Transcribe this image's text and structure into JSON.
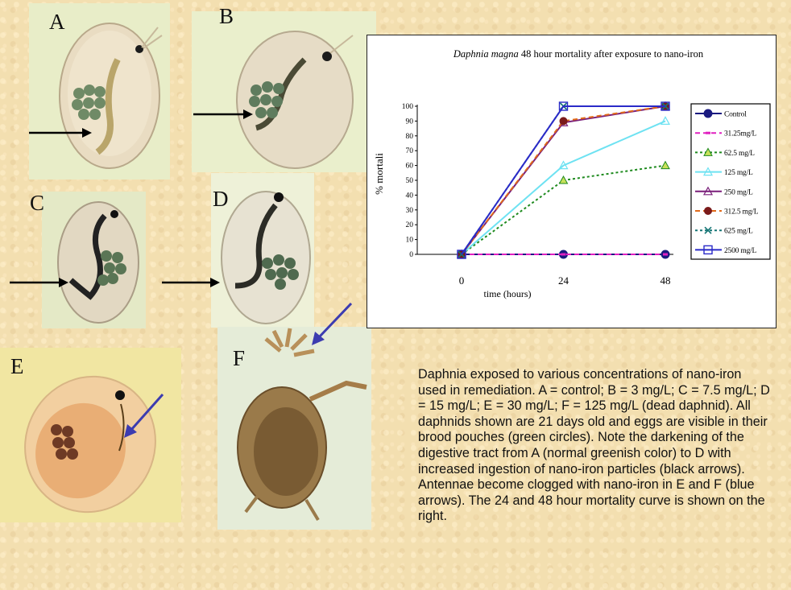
{
  "panels": [
    {
      "label": "A"
    },
    {
      "label": "B"
    },
    {
      "label": "C"
    },
    {
      "label": "D"
    },
    {
      "label": "E"
    },
    {
      "label": "F"
    }
  ],
  "caption": "Daphnia exposed to various concentrations of nano-iron used in remediation.  A = control; B = 3 mg/L; C = 7.5 mg/L; D = 15 mg/L; E = 30 mg/L; F = 125 mg/L (dead daphnid).  All daphnids shown are 21 days old and eggs are visible in their brood pouches (green circles).  Note the darkening of the digestive tract from A (normal greenish color) to D with increased ingestion of nano-iron particles (black arrows).  Antennae become clogged with nano-iron in E and F (blue arrows).  The 24 and 48 hour mortality curve is shown on the right.",
  "chart_data": {
    "type": "line",
    "title_italic": "Daphnia magna",
    "title_rest": " 48 hour mortality after exposure to nano-iron",
    "xlabel": "time (hours)",
    "ylabel": "% mortali",
    "x": [
      0,
      24,
      48
    ],
    "ylim": [
      0,
      100
    ],
    "yticks": [
      0,
      10,
      20,
      30,
      40,
      50,
      60,
      70,
      80,
      90,
      100
    ],
    "legend_position": "right",
    "series": [
      {
        "name": "Control",
        "values": [
          0,
          0,
          0
        ],
        "color": "#1a1a80",
        "dash": "",
        "marker": "circle"
      },
      {
        "name": "31.25mg/L",
        "values": [
          0,
          0,
          0
        ],
        "color": "#e020c0",
        "dash": "6,4",
        "marker": "dash"
      },
      {
        "name": "62.5 mg/L",
        "values": [
          0,
          50,
          60
        ],
        "color": "#1e8a1e",
        "dash": "3,3",
        "marker": "triangle-filled"
      },
      {
        "name": "125 mg/L",
        "values": [
          0,
          60,
          90
        ],
        "color": "#6ee2f2",
        "dash": "",
        "marker": "triangle-open"
      },
      {
        "name": "250 mg/L",
        "values": [
          0,
          89,
          100
        ],
        "color": "#7a1f7a",
        "dash": "",
        "marker": "triangle-open"
      },
      {
        "name": "312.5 mg/L",
        "values": [
          0,
          90,
          100
        ],
        "color": "#e06a1a",
        "dash": "6,4",
        "marker": "circle-dark"
      },
      {
        "name": "625 mg/L",
        "values": [
          0,
          100,
          100
        ],
        "color": "#157575",
        "dash": "3,3",
        "marker": "x"
      },
      {
        "name": "2500 mg/L",
        "values": [
          0,
          100,
          100
        ],
        "color": "#2a2ac8",
        "dash": "",
        "marker": "square-open"
      }
    ]
  },
  "colors": {
    "background": "#f3dfb0",
    "digestive_dark": "#2a2a22",
    "egg_green": "#5c7a58",
    "blue_arrow": "#3c3cb0"
  }
}
